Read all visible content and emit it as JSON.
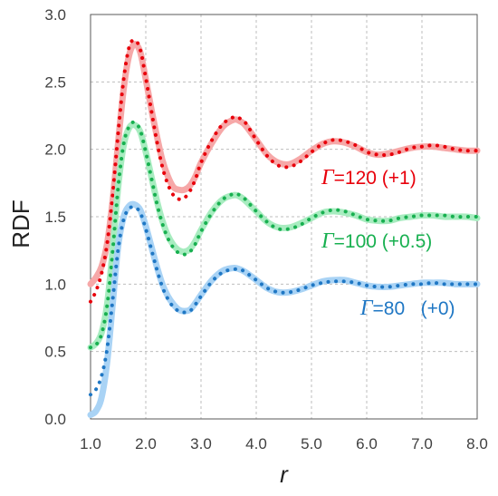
{
  "chart_data": {
    "type": "line",
    "title": "",
    "xlabel": "r",
    "ylabel": "RDF",
    "xlim": [
      1.0,
      8.0
    ],
    "ylim": [
      0.0,
      3.0
    ],
    "xticks": [
      "1.0",
      "2.0",
      "3.0",
      "4.0",
      "5.0",
      "6.0",
      "7.0",
      "8.0"
    ],
    "yticks": [
      "0.0",
      "0.5",
      "1.0",
      "1.5",
      "2.0",
      "2.5",
      "3.0"
    ],
    "grid": true,
    "legend": "none",
    "annotations": [
      {
        "symbol": "Γ",
        "text": "=120 (+1)",
        "color": "#e8000b"
      },
      {
        "symbol": "Γ",
        "text": "=100 (+0.5)",
        "color": "#18b050"
      },
      {
        "symbol": "Γ",
        "text": "=80   (+0)",
        "color": "#1f77c4"
      }
    ],
    "series": [
      {
        "style": "solid",
        "color": "#f6a8a8",
        "x": [
          1.0,
          1.1,
          1.2,
          1.3,
          1.4,
          1.5,
          1.6,
          1.7,
          1.8,
          1.9,
          2.0,
          2.1,
          2.2,
          2.3,
          2.4,
          2.5,
          2.6,
          2.7,
          2.8,
          2.9,
          3.0,
          3.2,
          3.4,
          3.6,
          3.7,
          3.8,
          4.0,
          4.2,
          4.4,
          4.6,
          4.8,
          5.0,
          5.2,
          5.4,
          5.6,
          5.8,
          6.0,
          6.2,
          6.4,
          6.6,
          6.8,
          7.0,
          7.2,
          7.4,
          7.6,
          7.8,
          8.0
        ],
        "y": [
          1.0,
          1.05,
          1.13,
          1.3,
          1.62,
          2.05,
          2.45,
          2.7,
          2.78,
          2.72,
          2.52,
          2.3,
          2.1,
          1.92,
          1.8,
          1.72,
          1.7,
          1.7,
          1.73,
          1.8,
          1.9,
          2.05,
          2.17,
          2.22,
          2.21,
          2.18,
          2.07,
          1.96,
          1.9,
          1.89,
          1.93,
          1.99,
          2.04,
          2.06,
          2.05,
          2.02,
          1.98,
          1.96,
          1.97,
          1.99,
          2.01,
          2.02,
          2.02,
          2.01,
          2.0,
          1.99,
          1.99
        ]
      },
      {
        "style": "dotted",
        "color": "#e8000b",
        "x": [
          1.0,
          1.1,
          1.2,
          1.3,
          1.4,
          1.5,
          1.6,
          1.7,
          1.8,
          1.9,
          2.0,
          2.1,
          2.2,
          2.3,
          2.4,
          2.5,
          2.6,
          2.7,
          2.8,
          2.9,
          3.0,
          3.2,
          3.4,
          3.6,
          3.7,
          3.8,
          4.0,
          4.2,
          4.4,
          4.6,
          4.8,
          5.0,
          5.2,
          5.4,
          5.6,
          5.8,
          6.0,
          6.2,
          6.4,
          6.6,
          6.8,
          7.0,
          7.2,
          7.4,
          7.6,
          7.8,
          8.0
        ],
        "y": [
          0.87,
          0.95,
          1.08,
          1.3,
          1.66,
          2.12,
          2.52,
          2.76,
          2.81,
          2.74,
          2.53,
          2.29,
          2.06,
          1.87,
          1.74,
          1.66,
          1.63,
          1.64,
          1.69,
          1.78,
          1.9,
          2.07,
          2.19,
          2.24,
          2.23,
          2.2,
          2.07,
          1.95,
          1.88,
          1.87,
          1.91,
          1.98,
          2.04,
          2.07,
          2.06,
          2.03,
          1.98,
          1.96,
          1.96,
          1.98,
          2.01,
          2.02,
          2.03,
          2.02,
          2.0,
          1.99,
          1.99
        ]
      },
      {
        "style": "solid",
        "color": "#a8ecc0",
        "x": [
          1.0,
          1.1,
          1.2,
          1.3,
          1.4,
          1.5,
          1.6,
          1.7,
          1.8,
          1.9,
          2.0,
          2.1,
          2.2,
          2.3,
          2.4,
          2.5,
          2.6,
          2.7,
          2.8,
          2.9,
          3.0,
          3.2,
          3.4,
          3.6,
          3.7,
          3.8,
          4.0,
          4.2,
          4.4,
          4.6,
          4.8,
          5.0,
          5.2,
          5.4,
          5.6,
          5.8,
          6.0,
          6.2,
          6.4,
          6.6,
          6.8,
          7.0,
          7.2,
          7.4,
          7.6,
          7.8,
          8.0
        ],
        "y": [
          0.53,
          0.56,
          0.64,
          0.85,
          1.25,
          1.72,
          2.03,
          2.16,
          2.18,
          2.13,
          1.98,
          1.8,
          1.62,
          1.47,
          1.36,
          1.29,
          1.25,
          1.24,
          1.26,
          1.32,
          1.4,
          1.54,
          1.63,
          1.66,
          1.65,
          1.62,
          1.54,
          1.46,
          1.42,
          1.42,
          1.45,
          1.49,
          1.53,
          1.54,
          1.53,
          1.51,
          1.48,
          1.47,
          1.47,
          1.49,
          1.5,
          1.51,
          1.51,
          1.5,
          1.5,
          1.5,
          1.49
        ]
      },
      {
        "style": "dotted",
        "color": "#18b050",
        "x": [
          1.0,
          1.1,
          1.2,
          1.3,
          1.4,
          1.5,
          1.6,
          1.7,
          1.8,
          1.9,
          2.0,
          2.1,
          2.2,
          2.3,
          2.4,
          2.5,
          2.6,
          2.7,
          2.8,
          2.9,
          3.0,
          3.2,
          3.4,
          3.6,
          3.7,
          3.8,
          4.0,
          4.2,
          4.4,
          4.6,
          4.8,
          5.0,
          5.2,
          5.4,
          5.6,
          5.8,
          6.0,
          6.2,
          6.4,
          6.6,
          6.8,
          7.0,
          7.2,
          7.4,
          7.6,
          7.8,
          8.0
        ],
        "y": [
          0.53,
          0.55,
          0.63,
          0.84,
          1.24,
          1.72,
          2.04,
          2.17,
          2.2,
          2.14,
          1.98,
          1.79,
          1.6,
          1.45,
          1.34,
          1.27,
          1.23,
          1.22,
          1.24,
          1.3,
          1.39,
          1.53,
          1.63,
          1.67,
          1.66,
          1.63,
          1.54,
          1.46,
          1.41,
          1.41,
          1.44,
          1.49,
          1.53,
          1.55,
          1.54,
          1.51,
          1.48,
          1.47,
          1.47,
          1.49,
          1.5,
          1.51,
          1.51,
          1.51,
          1.5,
          1.5,
          1.5
        ]
      },
      {
        "style": "solid",
        "color": "#a9d3f5",
        "x": [
          1.0,
          1.1,
          1.2,
          1.3,
          1.4,
          1.5,
          1.6,
          1.7,
          1.8,
          1.9,
          2.0,
          2.1,
          2.2,
          2.3,
          2.4,
          2.5,
          2.6,
          2.7,
          2.8,
          2.9,
          3.0,
          3.2,
          3.4,
          3.6,
          3.7,
          3.8,
          4.0,
          4.2,
          4.4,
          4.6,
          4.8,
          5.0,
          5.2,
          5.4,
          5.6,
          5.8,
          6.0,
          6.2,
          6.4,
          6.6,
          6.8,
          7.0,
          7.2,
          7.4,
          7.6,
          7.8,
          8.0
        ],
        "y": [
          0.03,
          0.06,
          0.16,
          0.42,
          0.85,
          1.28,
          1.5,
          1.58,
          1.59,
          1.55,
          1.43,
          1.28,
          1.13,
          1.0,
          0.91,
          0.85,
          0.81,
          0.8,
          0.81,
          0.86,
          0.92,
          1.03,
          1.1,
          1.12,
          1.11,
          1.09,
          1.03,
          0.97,
          0.94,
          0.94,
          0.96,
          0.99,
          1.02,
          1.03,
          1.03,
          1.01,
          0.99,
          0.98,
          0.98,
          0.99,
          1.0,
          1.01,
          1.01,
          1.01,
          1.0,
          1.0,
          1.0
        ]
      },
      {
        "style": "dotted",
        "color": "#1f77c4",
        "x": [
          1.0,
          1.1,
          1.2,
          1.3,
          1.4,
          1.5,
          1.6,
          1.7,
          1.8,
          1.9,
          2.0,
          2.1,
          2.2,
          2.3,
          2.4,
          2.5,
          2.6,
          2.7,
          2.8,
          2.9,
          3.0,
          3.2,
          3.4,
          3.6,
          3.7,
          3.8,
          4.0,
          4.2,
          4.4,
          4.6,
          4.8,
          5.0,
          5.2,
          5.4,
          5.6,
          5.8,
          6.0,
          6.2,
          6.4,
          6.6,
          6.8,
          7.0,
          7.2,
          7.4,
          7.6,
          7.8,
          8.0
        ],
        "y": [
          0.18,
          0.22,
          0.32,
          0.52,
          0.88,
          1.26,
          1.48,
          1.56,
          1.57,
          1.53,
          1.41,
          1.26,
          1.11,
          0.98,
          0.89,
          0.83,
          0.8,
          0.79,
          0.8,
          0.85,
          0.91,
          1.02,
          1.09,
          1.11,
          1.11,
          1.09,
          1.03,
          0.97,
          0.94,
          0.94,
          0.96,
          0.99,
          1.01,
          1.02,
          1.02,
          1.01,
          0.99,
          0.98,
          0.98,
          0.99,
          1.0,
          1.0,
          1.01,
          1.0,
          1.0,
          1.0,
          1.0
        ]
      }
    ]
  }
}
